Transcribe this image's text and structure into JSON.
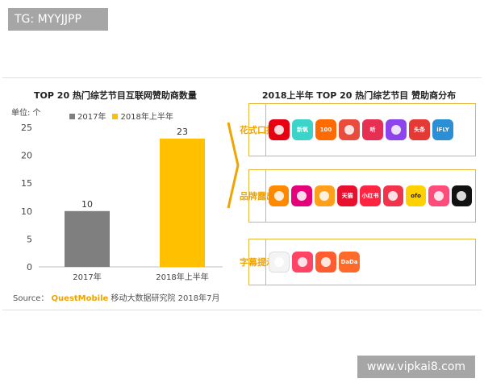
{
  "watermarks": {
    "top_left": "TG: MYYJJPP",
    "bottom_right": "www.vipkai8.com"
  },
  "left_title": "TOP 20 热门综艺节目互联网赞助商数量",
  "right_title": "2018上半年 TOP 20 热门综艺节目 赞助商分布",
  "unit_label": "单位: 个",
  "source": {
    "prefix": "Source：",
    "brand": "QuestMobile",
    "suffix": "移动大数据研究院 2018年7月"
  },
  "colors": {
    "series_2017": "#7f7f7f",
    "series_2018h1": "#ffc000",
    "accent": "#f0a400"
  },
  "chart_data": {
    "type": "bar",
    "title": "TOP 20 热门综艺节目互联网赞助商数量",
    "ylabel": "单位: 个",
    "categories": [
      "2017年",
      "2018年上半年"
    ],
    "values": [
      10,
      23
    ],
    "data_labels": [
      "10",
      "23"
    ],
    "legend": [
      "2017年",
      "2018年上半年"
    ],
    "legend_position": "top",
    "yticks": [
      "0",
      "5",
      "10",
      "15",
      "20",
      "25"
    ],
    "ylim": [
      0,
      25
    ],
    "grid": false
  },
  "sponsor_rows": [
    {
      "label": "花式口播",
      "logos": [
        {
          "icon": "heart-flower-logo",
          "text": "",
          "color": "#e60012"
        },
        {
          "icon": "xinyang-logo",
          "text": "新氧",
          "color": "#3cd3c8"
        },
        {
          "icon": "100-logo",
          "text": "100",
          "color": "#ff6b00"
        },
        {
          "icon": "music-note-logo",
          "text": "",
          "color": "#e94b3c"
        },
        {
          "icon": "ting-logo",
          "text": "听",
          "color": "#e72e53"
        },
        {
          "icon": "play-logo",
          "text": "",
          "color": "#8e44ec"
        },
        {
          "icon": "toutiao-logo",
          "text": "头条",
          "color": "#e53935"
        },
        {
          "icon": "ifly-logo",
          "text": "iFLY",
          "color": "#2b8fd6"
        }
      ]
    },
    {
      "label": "品牌露出",
      "logos": [
        {
          "icon": "kuaishou-logo",
          "text": "",
          "color": "#ff8a00"
        },
        {
          "icon": "quark-logo",
          "text": "",
          "color": "#e6007a"
        },
        {
          "icon": "flower-logo",
          "text": "",
          "color": "#ff9f1c"
        },
        {
          "icon": "tmall-logo",
          "text": "天猫",
          "color": "#e8102e"
        },
        {
          "icon": "xiaohongshu-logo",
          "text": "小红书",
          "color": "#ff2442"
        },
        {
          "icon": "bubble-logo",
          "text": "",
          "color": "#f2334c"
        },
        {
          "icon": "ofo-logo",
          "text": "ofo",
          "color": "#ffd100"
        },
        {
          "icon": "face-logo",
          "text": "",
          "color": "#ff4c7a"
        },
        {
          "icon": "tiktok-logo",
          "text": "",
          "color": "#111111"
        }
      ]
    },
    {
      "label": "字幕提示",
      "logos": [
        {
          "icon": "frog-logo",
          "text": "",
          "color": "#f4f4f4"
        },
        {
          "icon": "mushroom-logo",
          "text": "",
          "color": "#ff4466"
        },
        {
          "icon": "meitu-logo",
          "text": "",
          "color": "#ff5d2f"
        },
        {
          "icon": "dada-logo",
          "text": "DaDa",
          "color": "#ff6a2b"
        }
      ]
    }
  ]
}
